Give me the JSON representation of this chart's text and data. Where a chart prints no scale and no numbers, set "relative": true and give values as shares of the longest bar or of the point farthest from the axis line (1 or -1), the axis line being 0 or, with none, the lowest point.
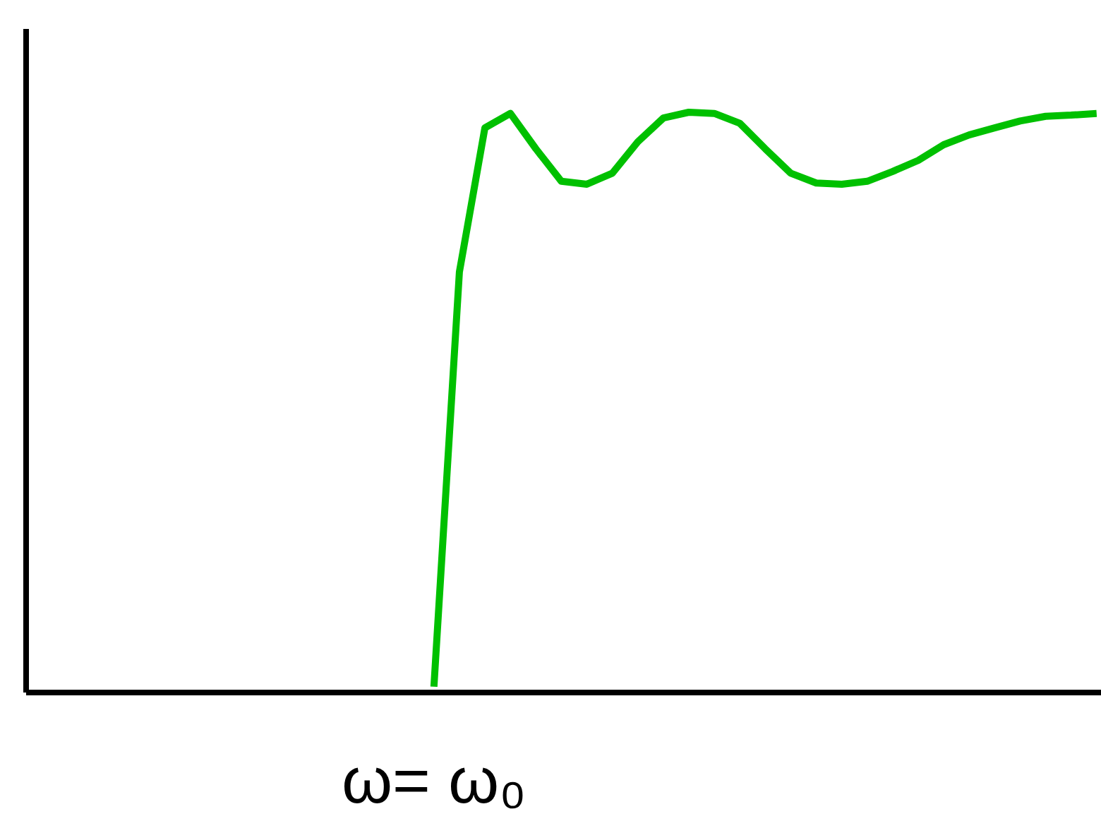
{
  "chart_data": {
    "type": "line",
    "annotations": [
      "ω= ω₀"
    ],
    "relative": true,
    "color": "#00c000",
    "categories": [
      null,
      null,
      null,
      null,
      null,
      null,
      null,
      null,
      null,
      null,
      null,
      null,
      null,
      null,
      null,
      null,
      null,
      null,
      null,
      null,
      null,
      null,
      null,
      null,
      null,
      null,
      null,
      null,
      null,
      null,
      null,
      null,
      null,
      null,
      null,
      null,
      null,
      null,
      null,
      null,
      null,
      null,
      null
    ],
    "values": [
      null,
      null,
      null,
      null,
      null,
      null,
      null,
      null,
      null,
      null,
      null,
      null,
      null,
      null,
      null,
      null,
      0.01,
      0.725,
      0.973,
      0.998,
      0.937,
      0.881,
      0.876,
      0.895,
      0.949,
      0.99,
      1.0,
      0.998,
      0.981,
      0.937,
      0.895,
      0.878,
      0.876,
      0.881,
      0.898,
      0.917,
      0.944,
      0.961,
      0.973,
      0.985,
      0.993,
      0.995,
      0.998
    ]
  }
}
